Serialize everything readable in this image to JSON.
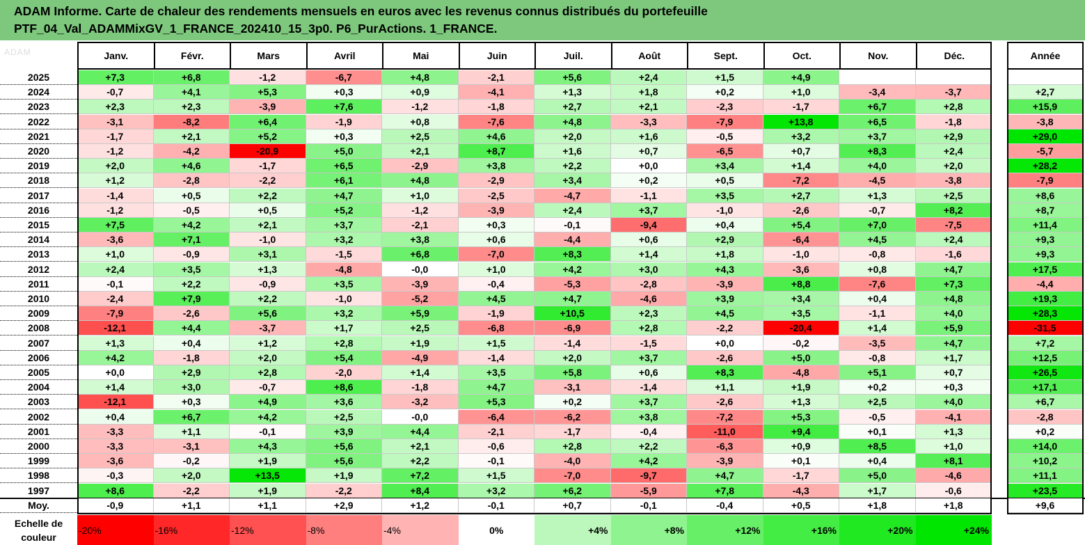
{
  "title": {
    "line1": "ADAM Informe. Carte de chaleur des rendements mensuels en euros avec les revenus connus distribués du portefeuille",
    "line2": "PTF_04_Val_ADAMMixGV_1_FRANCE_202410_15_3p0. P6_PurActions. 1_FRANCE."
  },
  "logo_text": "ADAM",
  "months": [
    "Janv.",
    "Févr.",
    "Mars",
    "Avril",
    "Mai",
    "Juin",
    "Juil.",
    "Août",
    "Sept.",
    "Oct.",
    "Nov.",
    "Déc."
  ],
  "year_header": "Année",
  "average_label": "Moy.",
  "scale_label": [
    "Echelle de",
    "couleur"
  ],
  "scale_steps": [
    "-20%",
    "-16%",
    "-12%",
    "-8%",
    "-4%",
    "0%",
    "+4%",
    "+8%",
    "+12%",
    "+16%",
    "+20%",
    "+24%"
  ],
  "scale_values": [
    -20,
    -16,
    -12,
    -8,
    -4,
    0,
    4,
    8,
    12,
    16,
    20,
    24
  ],
  "colors": {
    "title_bg": "#7ec87e",
    "negative": "#ff0000",
    "positive": "#00e600"
  },
  "chart_data": {
    "type": "heatmap",
    "title": "ADAM Informe. Carte de chaleur des rendements mensuels en euros avec les revenus connus distribués du portefeuille PTF_04_Val_ADAMMixGV_1_FRANCE_202410_15_3p0. P6_PurActions. 1_FRANCE.",
    "columns": [
      "Janv.",
      "Févr.",
      "Mars",
      "Avril",
      "Mai",
      "Juin",
      "Juil.",
      "Août",
      "Sept.",
      "Oct.",
      "Nov.",
      "Déc.",
      "Année"
    ],
    "rows": [
      {
        "year": "2025",
        "values": [
          "+7,3",
          "+6,8",
          "-1,2",
          "-6,7",
          "+4,8",
          "-2,1",
          "+5,6",
          "+2,4",
          "+1,5",
          "+4,9",
          "",
          ""
        ],
        "annual": ""
      },
      {
        "year": "2024",
        "values": [
          "-0,7",
          "+4,1",
          "+5,3",
          "+0,3",
          "+0,9",
          "-4,1",
          "+1,3",
          "+1,8",
          "+0,2",
          "+1,0",
          "-3,4",
          "-3,7"
        ],
        "annual": "+2,7"
      },
      {
        "year": "2023",
        "values": [
          "+2,3",
          "+2,3",
          "-3,9",
          "+7,6",
          "-1,2",
          "-1,8",
          "+2,7",
          "+2,1",
          "-2,3",
          "-1,7",
          "+6,7",
          "+2,8"
        ],
        "annual": "+15,9"
      },
      {
        "year": "2022",
        "values": [
          "-3,1",
          "-8,2",
          "+6,4",
          "-1,9",
          "+0,8",
          "-7,6",
          "+4,8",
          "-3,3",
          "-7,9",
          "+13,8",
          "+6,5",
          "-1,8"
        ],
        "annual": "-3,8"
      },
      {
        "year": "2021",
        "values": [
          "-1,7",
          "+2,1",
          "+5,2",
          "+0,3",
          "+2,5",
          "+4,6",
          "+2,0",
          "+1,6",
          "-0,5",
          "+3,2",
          "+3,7",
          "+2,9"
        ],
        "annual": "+29,0"
      },
      {
        "year": "2020",
        "values": [
          "-1,2",
          "-4,2",
          "-20,9",
          "+5,0",
          "+2,1",
          "+8,7",
          "+1,6",
          "+0,7",
          "-6,5",
          "+0,7",
          "+8,3",
          "+2,4"
        ],
        "annual": "-5,7"
      },
      {
        "year": "2019",
        "values": [
          "+2,0",
          "+4,6",
          "-1,7",
          "+6,5",
          "-2,9",
          "+3,8",
          "+2,2",
          "+0,0",
          "+3,4",
          "+1,4",
          "+4,0",
          "+2,0"
        ],
        "annual": "+28,2"
      },
      {
        "year": "2018",
        "values": [
          "+1,2",
          "-2,8",
          "-2,2",
          "+6,1",
          "+4,8",
          "-2,9",
          "+3,4",
          "+0,2",
          "+0,5",
          "-7,2",
          "-4,5",
          "-3,8"
        ],
        "annual": "-7,9"
      },
      {
        "year": "2017",
        "values": [
          "-1,4",
          "+0,5",
          "+2,2",
          "+4,7",
          "+1,0",
          "-2,5",
          "-4,7",
          "-1,1",
          "+3,5",
          "+2,7",
          "+1,3",
          "+2,5"
        ],
        "annual": "+8,6"
      },
      {
        "year": "2016",
        "values": [
          "-1,2",
          "-0,5",
          "+0,5",
          "+5,2",
          "-1,2",
          "-3,9",
          "+2,4",
          "+3,7",
          "-1,0",
          "-2,6",
          "-0,7",
          "+8,2"
        ],
        "annual": "+8,7"
      },
      {
        "year": "2015",
        "values": [
          "+7,5",
          "+4,2",
          "+2,1",
          "+3,7",
          "-2,1",
          "+0,3",
          "-0,1",
          "-9,4",
          "+0,4",
          "+5,4",
          "+7,0",
          "-7,5"
        ],
        "annual": "+11,4"
      },
      {
        "year": "2014",
        "values": [
          "-3,6",
          "+7,1",
          "-1,0",
          "+3,2",
          "+3,8",
          "+0,6",
          "-4,4",
          "+0,6",
          "+2,9",
          "-6,4",
          "+4,5",
          "+2,4"
        ],
        "annual": "+9,3"
      },
      {
        "year": "2013",
        "values": [
          "+1,0",
          "-0,9",
          "+3,1",
          "-1,5",
          "+6,8",
          "-7,0",
          "+8,3",
          "+1,4",
          "+1,8",
          "-1,0",
          "-0,8",
          "-1,6"
        ],
        "annual": "+9,3"
      },
      {
        "year": "2012",
        "values": [
          "+2,4",
          "+3,5",
          "+1,3",
          "-4,8",
          "-0,0",
          "+1,0",
          "+4,2",
          "+3,0",
          "+4,3",
          "-3,6",
          "+0,8",
          "+4,7"
        ],
        "annual": "+17,5"
      },
      {
        "year": "2011",
        "values": [
          "-0,1",
          "+2,2",
          "-0,9",
          "+3,5",
          "-3,9",
          "-0,4",
          "-5,3",
          "-2,8",
          "-3,9",
          "+8,8",
          "-7,6",
          "+7,3"
        ],
        "annual": "-4,4"
      },
      {
        "year": "2010",
        "values": [
          "-2,4",
          "+7,9",
          "+2,2",
          "-1,0",
          "-5,2",
          "+4,5",
          "+4,7",
          "-4,6",
          "+3,9",
          "+3,4",
          "+0,4",
          "+4,8"
        ],
        "annual": "+19,3"
      },
      {
        "year": "2009",
        "values": [
          "-7,9",
          "-2,6",
          "+5,6",
          "+3,2",
          "+5,9",
          "-1,9",
          "+10,5",
          "+2,3",
          "+4,5",
          "+3,5",
          "-1,1",
          "+4,0"
        ],
        "annual": "+28,3"
      },
      {
        "year": "2008",
        "values": [
          "-12,1",
          "+4,4",
          "-3,7",
          "+1,7",
          "+2,5",
          "-6,8",
          "-6,9",
          "+2,8",
          "-2,2",
          "-20,4",
          "+1,4",
          "+5,9"
        ],
        "annual": "-31,5"
      },
      {
        "year": "2007",
        "values": [
          "+1,3",
          "+0,4",
          "+1,2",
          "+2,8",
          "+1,9",
          "+1,5",
          "-1,4",
          "-1,5",
          "+0,0",
          "-0,2",
          "-3,5",
          "+4,7"
        ],
        "annual": "+7,2"
      },
      {
        "year": "2006",
        "values": [
          "+4,2",
          "-1,8",
          "+2,0",
          "+5,4",
          "-4,9",
          "-1,4",
          "+2,0",
          "+3,7",
          "-2,6",
          "+5,0",
          "-0,8",
          "+1,7"
        ],
        "annual": "+12,5"
      },
      {
        "year": "2005",
        "values": [
          "+0,0",
          "+2,9",
          "+2,8",
          "-2,0",
          "+1,4",
          "+3,5",
          "+5,8",
          "+0,6",
          "+8,3",
          "-4,8",
          "+5,1",
          "+0,7"
        ],
        "annual": "+26,5"
      },
      {
        "year": "2004",
        "values": [
          "+1,4",
          "+3,0",
          "-0,7",
          "+8,6",
          "-1,8",
          "+4,7",
          "-3,1",
          "-1,4",
          "+1,1",
          "+1,9",
          "+0,2",
          "+0,3"
        ],
        "annual": "+17,1"
      },
      {
        "year": "2003",
        "values": [
          "-12,1",
          "+0,3",
          "+4,9",
          "+3,6",
          "-3,2",
          "+5,3",
          "+0,2",
          "+3,7",
          "-2,6",
          "+1,3",
          "+2,5",
          "+4,0"
        ],
        "annual": "+6,7"
      },
      {
        "year": "2002",
        "values": [
          "+0,4",
          "+6,7",
          "+4,2",
          "+2,5",
          "-0,0",
          "-6,4",
          "-6,2",
          "+3,8",
          "-7,2",
          "+5,3",
          "-0,5",
          "-4,1"
        ],
        "annual": "-2,8"
      },
      {
        "year": "2001",
        "values": [
          "-3,3",
          "+1,1",
          "-0,1",
          "+3,9",
          "+4,4",
          "-2,1",
          "-1,7",
          "-0,4",
          "-11,0",
          "+9,4",
          "+0,1",
          "+1,3"
        ],
        "annual": "+0,2"
      },
      {
        "year": "2000",
        "values": [
          "-3,3",
          "-3,1",
          "+4,3",
          "+5,6",
          "+2,1",
          "-0,6",
          "+2,8",
          "+2,2",
          "-6,3",
          "+0,9",
          "+8,5",
          "+1,0"
        ],
        "annual": "+14,0"
      },
      {
        "year": "1999",
        "values": [
          "-3,6",
          "-0,2",
          "+1,9",
          "+5,6",
          "+2,2",
          "-0,1",
          "-4,0",
          "+4,2",
          "-3,9",
          "+0,1",
          "+0,4",
          "+8,1"
        ],
        "annual": "+10,2"
      },
      {
        "year": "1998",
        "values": [
          "-0,3",
          "+2,0",
          "+13,5",
          "+1,9",
          "+7,2",
          "+1,5",
          "-7,0",
          "-9,7",
          "+4,7",
          "-1,7",
          "+5,0",
          "-4,6"
        ],
        "annual": "+11,1"
      },
      {
        "year": "1997",
        "values": [
          "+8,6",
          "-2,2",
          "+1,9",
          "-2,2",
          "+8,4",
          "+3,2",
          "+6,2",
          "-5,9",
          "+7,8",
          "-4,3",
          "+1,7",
          "-0,6"
        ],
        "annual": "+23,5"
      }
    ],
    "average": {
      "values": [
        "-0,9",
        "+1,1",
        "+1,1",
        "+2,9",
        "+1,2",
        "-0,1",
        "+0,7",
        "-0,1",
        "-0,4",
        "+0,5",
        "+1,8",
        "+1,8"
      ],
      "annual": "+9,6"
    },
    "color_scale": {
      "min": -20,
      "max": 24,
      "negative_color": "#ff0000",
      "zero_color": "#ffffff",
      "positive_color": "#00e600"
    }
  }
}
